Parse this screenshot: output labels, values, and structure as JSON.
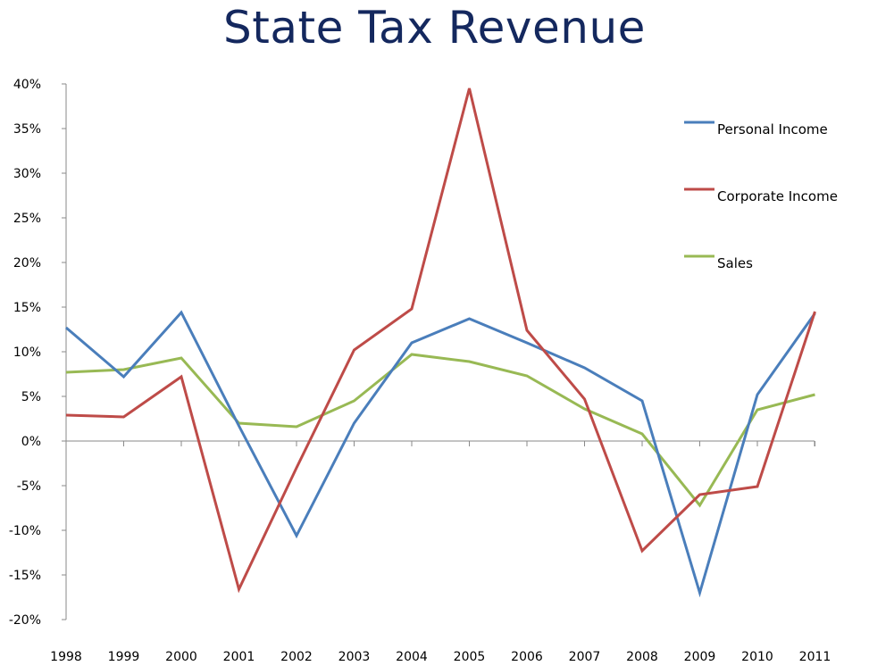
{
  "chart_data": {
    "type": "line",
    "title": "State Tax Revenue",
    "xlabel": "",
    "ylabel": "",
    "categories": [
      "1998",
      "1999",
      "2000",
      "2001",
      "2002",
      "2003",
      "2004",
      "2005",
      "2006",
      "2007",
      "2008",
      "2009",
      "2010",
      "2011"
    ],
    "ylim": [
      -0.2,
      0.4
    ],
    "yticks": [
      "40%",
      "35%",
      "30%",
      "25%",
      "20%",
      "15%",
      "10%",
      "5%",
      "0%",
      "-5%",
      "-10%",
      "-15%",
      "-20%"
    ],
    "grid": false,
    "legend_position": "right",
    "series": [
      {
        "name": "Personal Income",
        "color": "#4a7ebb",
        "values": [
          0.127,
          0.072,
          0.144,
          0.017,
          -0.106,
          0.02,
          0.11,
          0.137,
          0.11,
          0.082,
          0.045,
          -0.17,
          0.052,
          0.143
        ]
      },
      {
        "name": "Corporate Income",
        "color": "#be4b48",
        "values": [
          0.029,
          0.027,
          0.072,
          -0.166,
          -0.03,
          0.102,
          0.148,
          0.395,
          0.124,
          0.047,
          -0.123,
          -0.06,
          -0.051,
          0.145
        ]
      },
      {
        "name": "Sales",
        "color": "#98b954",
        "values": [
          0.077,
          0.08,
          0.093,
          0.02,
          0.016,
          0.045,
          0.097,
          0.089,
          0.073,
          0.036,
          0.008,
          -0.072,
          0.035,
          0.052
        ]
      }
    ]
  }
}
